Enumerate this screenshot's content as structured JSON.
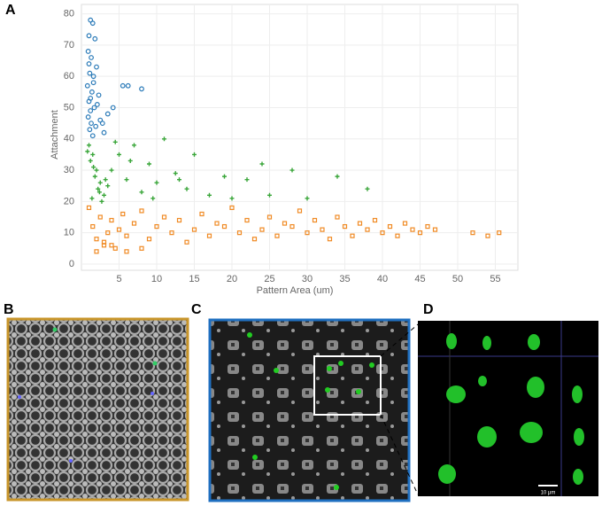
{
  "chart_data": {
    "type": "scatter",
    "xlabel": "Pattern Area (um)",
    "ylabel": "Attachment",
    "xlim": [
      0,
      58
    ],
    "ylim": [
      -2,
      83
    ],
    "xticks": [
      5,
      10,
      15,
      20,
      25,
      30,
      35,
      40,
      45,
      50,
      55
    ],
    "yticks": [
      0,
      10,
      20,
      30,
      40,
      50,
      60,
      70,
      80
    ],
    "grid": true,
    "series": [
      {
        "color": "#2a7ab8",
        "marker": "circle",
        "x": [
          1.2,
          1.5,
          1.0,
          1.8,
          0.9,
          1.3,
          2.0,
          1.1,
          1.6,
          0.8,
          1.4,
          2.3,
          1.0,
          1.7,
          1.2,
          0.9,
          2.5,
          1.3,
          1.9,
          1.1,
          3.0,
          1.5,
          5.5,
          6.2,
          8.0,
          3.5,
          1.2,
          2.1,
          1.0,
          1.6,
          4.2,
          2.8
        ],
        "values": [
          78,
          77,
          73,
          72,
          68,
          66,
          63,
          61,
          58,
          57,
          55,
          54,
          52,
          50,
          49,
          47,
          46,
          45,
          44,
          43,
          42,
          41,
          57,
          57,
          56,
          48,
          53,
          51,
          64,
          60,
          50,
          45
        ]
      },
      {
        "color": "#3aa63a",
        "marker": "plus",
        "x": [
          1.0,
          1.5,
          2.0,
          2.5,
          3.0,
          1.2,
          1.8,
          2.2,
          0.8,
          1.4,
          3.5,
          4.0,
          5.0,
          6.0,
          7.0,
          8.0,
          9.0,
          10.0,
          11.0,
          12.5,
          14.0,
          15.0,
          17.0,
          19.0,
          20.0,
          22.0,
          24.0,
          25.0,
          28.0,
          30.0,
          34.0,
          38.0,
          2.7,
          3.2,
          1.6,
          2.4,
          6.5,
          9.5,
          13.0,
          4.5
        ],
        "values": [
          38,
          35,
          30,
          26,
          22,
          33,
          28,
          24,
          36,
          21,
          25,
          30,
          35,
          27,
          38,
          23,
          32,
          26,
          40,
          29,
          24,
          35,
          22,
          28,
          21,
          27,
          32,
          22,
          30,
          21,
          28,
          24,
          20,
          27,
          31,
          23,
          33,
          21,
          27,
          39
        ]
      },
      {
        "color": "#f08a24",
        "marker": "square",
        "x": [
          1,
          1.5,
          2,
          2.5,
          3,
          3.5,
          4,
          4.5,
          5,
          5.5,
          6,
          7,
          8,
          9,
          10,
          11,
          12,
          13,
          14,
          15,
          16,
          17,
          18,
          19,
          20,
          21,
          22,
          23,
          24,
          25,
          26,
          27,
          28,
          29,
          30,
          31,
          32,
          33,
          34,
          35,
          36,
          37,
          38,
          39,
          40,
          41,
          42,
          43,
          44,
          45,
          46,
          47,
          2,
          3,
          4,
          6,
          8,
          52,
          54,
          55.5
        ],
        "values": [
          18,
          12,
          8,
          15,
          6,
          10,
          14,
          5,
          11,
          16,
          9,
          13,
          17,
          8,
          12,
          15,
          10,
          14,
          7,
          11,
          16,
          9,
          13,
          12,
          18,
          10,
          14,
          8,
          11,
          15,
          9,
          13,
          12,
          17,
          10,
          14,
          11,
          8,
          15,
          12,
          9,
          13,
          11,
          14,
          10,
          12,
          9,
          13,
          11,
          10,
          12,
          11,
          4,
          7,
          6,
          4,
          5,
          10,
          9,
          10
        ]
      }
    ]
  },
  "figure": {
    "panel_labels": [
      "A",
      "B",
      "C",
      "D"
    ],
    "scale_bar_label": "10 μm"
  }
}
